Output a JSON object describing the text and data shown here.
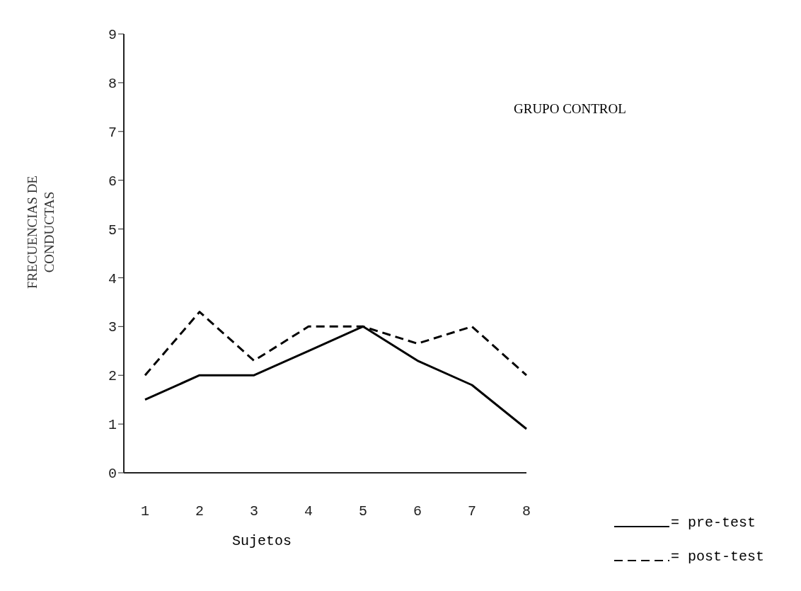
{
  "chart_data": {
    "type": "line",
    "title": "GRUPO CONTROL",
    "xlabel": "Sujetos",
    "ylabel": "FRECUENCIAS DE CONDUCTAS",
    "categories": [
      "1",
      "2",
      "3",
      "4",
      "5",
      "6",
      "7",
      "8"
    ],
    "series": [
      {
        "name": "= pre-test",
        "color": "#000000",
        "line_style": "solid",
        "values": [
          1.5,
          2,
          2,
          2.5,
          3,
          2.3,
          1.8,
          0.9
        ]
      },
      {
        "name": "= post-test",
        "color": "#000000",
        "line_style": "dashed",
        "values": [
          2,
          3.3,
          2.3,
          3,
          3,
          2.65,
          3,
          2
        ]
      }
    ],
    "ylim": [
      0,
      9
    ],
    "yticks": [
      0,
      1,
      2,
      3,
      4,
      5,
      6,
      7,
      8,
      9
    ],
    "grid": false,
    "legend": "bottom right",
    "marker": "none"
  }
}
